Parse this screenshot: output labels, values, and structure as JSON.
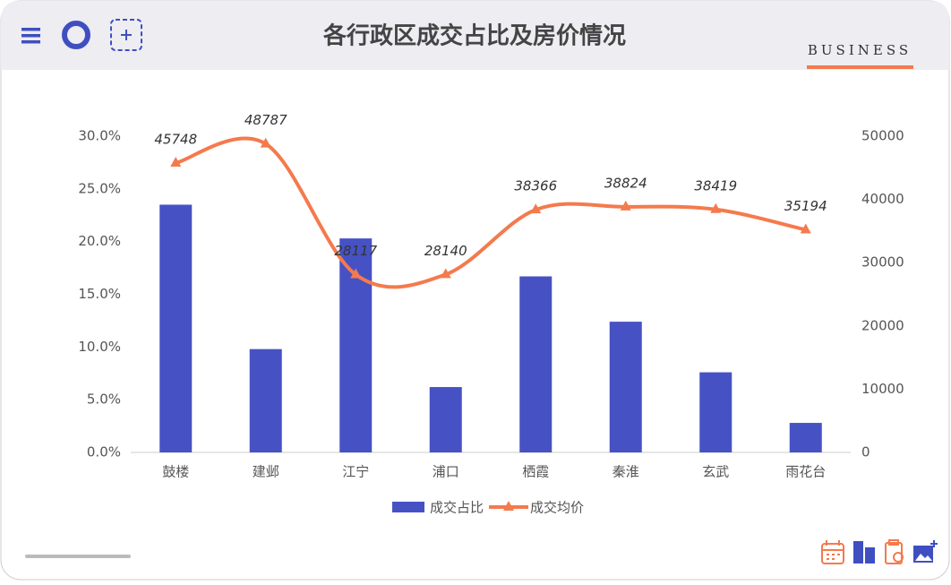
{
  "header": {
    "brand": "BUSINESS"
  },
  "chart_data": {
    "type": "combo",
    "title": "各行政区成交占比及房价情况",
    "categories": [
      "鼓楼",
      "建邺",
      "江宁",
      "浦口",
      "栖霞",
      "秦淮",
      "玄武",
      "雨花台"
    ],
    "series": [
      {
        "name": "成交占比",
        "type": "bar",
        "color": "#4652c4",
        "values": [
          23.5,
          9.8,
          20.3,
          6.2,
          16.7,
          12.4,
          7.6,
          2.8
        ]
      },
      {
        "name": "成交均价",
        "type": "line",
        "axis": "y2",
        "color": "#f47a4d",
        "values": [
          45748,
          48787,
          28117,
          28140,
          38366,
          38824,
          38419,
          35194
        ]
      }
    ],
    "ylim": [
      0,
      30
    ],
    "yticks": [
      {
        "value": 0,
        "label": "0.0%"
      },
      {
        "value": 5,
        "label": "5.0%"
      },
      {
        "value": 10,
        "label": "10.0%"
      },
      {
        "value": 15,
        "label": "15.0%"
      },
      {
        "value": 20,
        "label": "20.0%"
      },
      {
        "value": 25,
        "label": "25.0%"
      },
      {
        "value": 30,
        "label": "30.0%"
      }
    ],
    "y2lim": [
      0,
      50000
    ],
    "y2ticks": [
      0,
      10000,
      20000,
      30000,
      40000,
      50000
    ],
    "grid": false,
    "legend": "bottom"
  }
}
